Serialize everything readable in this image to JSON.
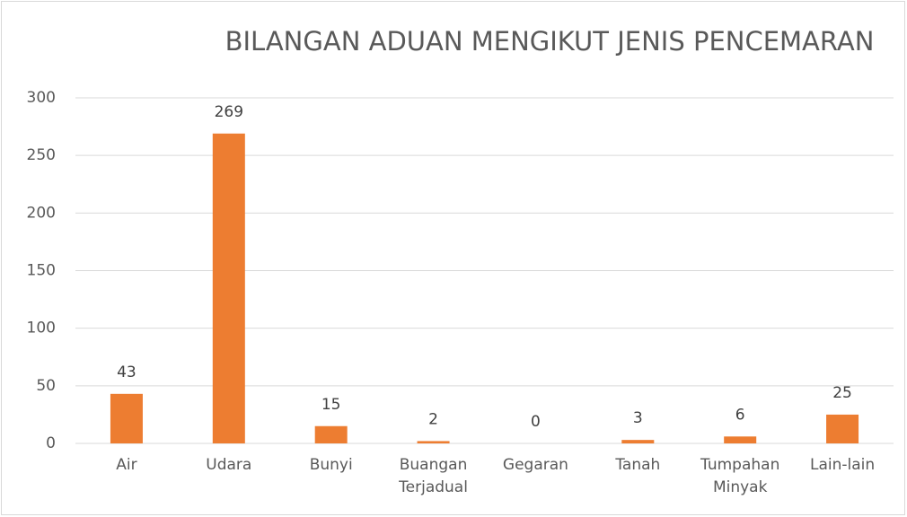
{
  "chart_data": {
    "type": "bar",
    "title": "BILANGAN ADUAN MENGIKUT JENIS PENCEMARAN",
    "categories": [
      "Air",
      "Udara",
      "Bunyi",
      "Buangan Terjadual",
      "Gegaran",
      "Tanah",
      "Tumpahan Minyak",
      "Lain-lain"
    ],
    "values": [
      43,
      269,
      15,
      2,
      0,
      3,
      6,
      25
    ],
    "color": "#ed7d31",
    "ylim": [
      0,
      300
    ],
    "yticks": [
      0,
      50,
      100,
      150,
      200,
      250,
      300
    ],
    "grid": true
  }
}
